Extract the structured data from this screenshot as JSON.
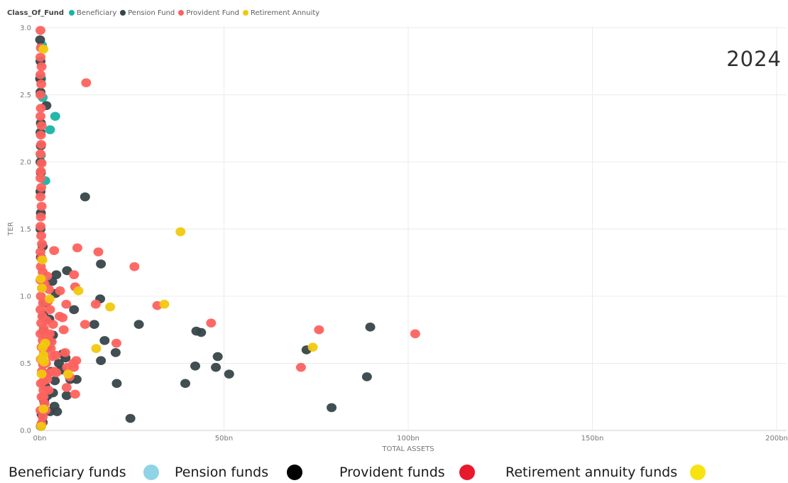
{
  "top_legend": {
    "title": "Class_Of_Fund",
    "items": [
      {
        "label": "Beneficiary",
        "color": "#1ab3a6"
      },
      {
        "label": "Pension Fund",
        "color": "#374649"
      },
      {
        "label": "Provident Fund",
        "color": "#fd625e"
      },
      {
        "label": "Retirement Annuity",
        "color": "#f2c80f"
      }
    ]
  },
  "year_label": "2024",
  "bottom_legend": [
    {
      "label": "Beneficiary funds",
      "color": "#8fd3e6"
    },
    {
      "label": "Pension funds",
      "color": "#000000"
    },
    {
      "label": "Provident funds",
      "color": "#e8192c"
    },
    {
      "label": "Retirement annuity funds",
      "color": "#f7e312"
    }
  ],
  "chart_data": {
    "type": "scatter",
    "xlabel": "TOTAL ASSETS",
    "ylabel": "TER",
    "xlim": [
      0,
      200
    ],
    "ylim": [
      0,
      3.0
    ],
    "x_unit": "bn",
    "x_ticks": [
      "0bn",
      "50bn",
      "100bn",
      "150bn",
      "200bn"
    ],
    "y_ticks": [
      "0.0",
      "0.5",
      "1.0",
      "1.5",
      "2.0",
      "2.5",
      "3.0"
    ],
    "grid": true,
    "series": [
      {
        "name": "Beneficiary",
        "color": "#1ab3a6",
        "points": [
          [
            0.6,
            2.87
          ],
          [
            0.8,
            2.48
          ],
          [
            4.2,
            2.34
          ],
          [
            2.8,
            2.24
          ],
          [
            1.5,
            1.86
          ],
          [
            0.4,
            2.62
          ],
          [
            0.3,
            2.05
          ]
        ]
      },
      {
        "name": "Pension Fund",
        "color": "#374649",
        "points": [
          [
            0.1,
            2.91
          ],
          [
            0.2,
            2.75
          ],
          [
            0.1,
            2.62
          ],
          [
            0.2,
            2.52
          ],
          [
            1.8,
            2.42
          ],
          [
            0.3,
            2.29
          ],
          [
            0.2,
            2.22
          ],
          [
            0.3,
            2.12
          ],
          [
            0.2,
            2.0
          ],
          [
            0.3,
            1.92
          ],
          [
            0.2,
            1.78
          ],
          [
            0.3,
            1.62
          ],
          [
            0.2,
            1.5
          ],
          [
            0.8,
            1.37
          ],
          [
            0.3,
            1.29
          ],
          [
            12.3,
            1.74
          ],
          [
            16.6,
            1.24
          ],
          [
            7.4,
            1.19
          ],
          [
            4.5,
            1.16
          ],
          [
            3.4,
            1.11
          ],
          [
            4.3,
            1.02
          ],
          [
            16.4,
            0.98
          ],
          [
            1.5,
            0.95
          ],
          [
            9.3,
            0.9
          ],
          [
            1.0,
            0.86
          ],
          [
            2.6,
            0.83
          ],
          [
            14.8,
            0.79
          ],
          [
            26.9,
            0.79
          ],
          [
            42.5,
            0.74
          ],
          [
            43.8,
            0.73
          ],
          [
            3.6,
            0.71
          ],
          [
            17.6,
            0.67
          ],
          [
            2.8,
            0.67
          ],
          [
            72.4,
            0.6
          ],
          [
            89.7,
            0.77
          ],
          [
            6.2,
            0.57
          ],
          [
            20.6,
            0.58
          ],
          [
            48.3,
            0.55
          ],
          [
            7.0,
            0.54
          ],
          [
            16.6,
            0.52
          ],
          [
            42.2,
            0.48
          ],
          [
            47.8,
            0.47
          ],
          [
            51.4,
            0.42
          ],
          [
            88.8,
            0.4
          ],
          [
            5.2,
            0.5
          ],
          [
            3.1,
            0.44
          ],
          [
            8.3,
            0.38
          ],
          [
            10.0,
            0.38
          ],
          [
            4.1,
            0.37
          ],
          [
            20.9,
            0.35
          ],
          [
            39.5,
            0.35
          ],
          [
            1.5,
            0.33
          ],
          [
            3.6,
            0.28
          ],
          [
            7.3,
            0.26
          ],
          [
            2.1,
            0.26
          ],
          [
            1.2,
            0.22
          ],
          [
            4.0,
            0.18
          ],
          [
            2.8,
            0.14
          ],
          [
            4.7,
            0.14
          ],
          [
            24.6,
            0.09
          ],
          [
            79.2,
            0.17
          ],
          [
            0.5,
            0.12
          ],
          [
            0.8,
            0.06
          ],
          [
            0.3,
            0.03
          ],
          [
            1.9,
            0.41
          ],
          [
            5.8,
            0.45
          ],
          [
            2.2,
            0.62
          ],
          [
            1.0,
            0.74
          ]
        ]
      },
      {
        "name": "Provident Fund",
        "color": "#fd625e",
        "points": [
          [
            0.2,
            2.98
          ],
          [
            0.3,
            2.85
          ],
          [
            0.2,
            2.78
          ],
          [
            0.5,
            2.71
          ],
          [
            0.2,
            2.65
          ],
          [
            0.4,
            2.58
          ],
          [
            0.2,
            2.5
          ],
          [
            0.3,
            2.4
          ],
          [
            0.2,
            2.34
          ],
          [
            0.5,
            2.27
          ],
          [
            0.3,
            2.2
          ],
          [
            0.4,
            2.13
          ],
          [
            0.2,
            2.06
          ],
          [
            0.5,
            1.99
          ],
          [
            0.3,
            1.93
          ],
          [
            0.2,
            1.88
          ],
          [
            0.4,
            1.81
          ],
          [
            0.2,
            1.74
          ],
          [
            0.5,
            1.67
          ],
          [
            0.3,
            1.59
          ],
          [
            0.2,
            1.52
          ],
          [
            0.4,
            1.45
          ],
          [
            0.6,
            1.39
          ],
          [
            0.2,
            1.33
          ],
          [
            0.5,
            1.28
          ],
          [
            0.3,
            1.22
          ],
          [
            0.8,
            1.18
          ],
          [
            0.2,
            1.12
          ],
          [
            0.6,
            1.06
          ],
          [
            0.3,
            1.0
          ],
          [
            0.9,
            0.95
          ],
          [
            0.2,
            0.9
          ],
          [
            0.7,
            0.85
          ],
          [
            0.4,
            0.8
          ],
          [
            1.1,
            0.76
          ],
          [
            0.2,
            0.72
          ],
          [
            0.8,
            0.67
          ],
          [
            0.5,
            0.62
          ],
          [
            1.2,
            0.58
          ],
          [
            0.3,
            0.53
          ],
          [
            0.9,
            0.49
          ],
          [
            0.6,
            0.44
          ],
          [
            1.4,
            0.4
          ],
          [
            0.3,
            0.35
          ],
          [
            1.0,
            0.3
          ],
          [
            0.5,
            0.25
          ],
          [
            1.3,
            0.2
          ],
          [
            0.2,
            0.15
          ],
          [
            0.8,
            0.1
          ],
          [
            0.5,
            0.05
          ],
          [
            12.6,
            2.59
          ],
          [
            3.9,
            1.34
          ],
          [
            10.2,
            1.36
          ],
          [
            15.9,
            1.33
          ],
          [
            25.7,
            1.22
          ],
          [
            9.3,
            1.16
          ],
          [
            2.0,
            1.15
          ],
          [
            9.6,
            1.07
          ],
          [
            2.5,
            1.05
          ],
          [
            5.5,
            1.04
          ],
          [
            7.2,
            0.94
          ],
          [
            15.2,
            0.94
          ],
          [
            31.9,
            0.93
          ],
          [
            2.8,
            0.9
          ],
          [
            5.4,
            0.85
          ],
          [
            6.2,
            0.84
          ],
          [
            12.3,
            0.79
          ],
          [
            3.6,
            0.79
          ],
          [
            46.5,
            0.8
          ],
          [
            75.8,
            0.75
          ],
          [
            6.5,
            0.75
          ],
          [
            101.9,
            0.72
          ],
          [
            1.9,
            0.7
          ],
          [
            3.2,
            0.66
          ],
          [
            20.8,
            0.65
          ],
          [
            6.9,
            0.58
          ],
          [
            4.4,
            0.56
          ],
          [
            9.9,
            0.52
          ],
          [
            1.7,
            0.5
          ],
          [
            9.1,
            0.5
          ],
          [
            7.4,
            0.47
          ],
          [
            70.9,
            0.47
          ],
          [
            3.9,
            0.44
          ],
          [
            2.7,
            0.43
          ],
          [
            9.3,
            0.47
          ],
          [
            4.5,
            0.43
          ],
          [
            1.1,
            0.37
          ],
          [
            7.3,
            0.32
          ],
          [
            2.4,
            0.3
          ],
          [
            9.6,
            0.27
          ],
          [
            1.6,
            0.15
          ],
          [
            3.0,
            0.61
          ],
          [
            1.8,
            0.82
          ],
          [
            2.2,
            0.96
          ],
          [
            1.3,
            1.09
          ],
          [
            2.7,
            0.72
          ],
          [
            3.5,
            0.55
          ],
          [
            8.1,
            0.4
          ],
          [
            1.0,
            0.25
          ],
          [
            2.0,
            0.38
          ]
        ]
      },
      {
        "name": "Retirement Annuity",
        "color": "#f2c80f",
        "points": [
          [
            1.0,
            2.84
          ],
          [
            38.2,
            1.48
          ],
          [
            0.7,
            1.27
          ],
          [
            0.3,
            1.13
          ],
          [
            10.5,
            1.04
          ],
          [
            0.6,
            1.06
          ],
          [
            2.7,
            0.98
          ],
          [
            19.1,
            0.92
          ],
          [
            33.8,
            0.94
          ],
          [
            74.1,
            0.62
          ],
          [
            15.3,
            0.61
          ],
          [
            0.8,
            0.62
          ],
          [
            1.0,
            0.56
          ],
          [
            0.5,
            0.53
          ],
          [
            1.2,
            0.51
          ],
          [
            7.7,
            0.42
          ],
          [
            0.5,
            0.42
          ],
          [
            1.0,
            0.16
          ],
          [
            0.4,
            0.03
          ],
          [
            1.5,
            0.65
          ]
        ]
      }
    ]
  }
}
